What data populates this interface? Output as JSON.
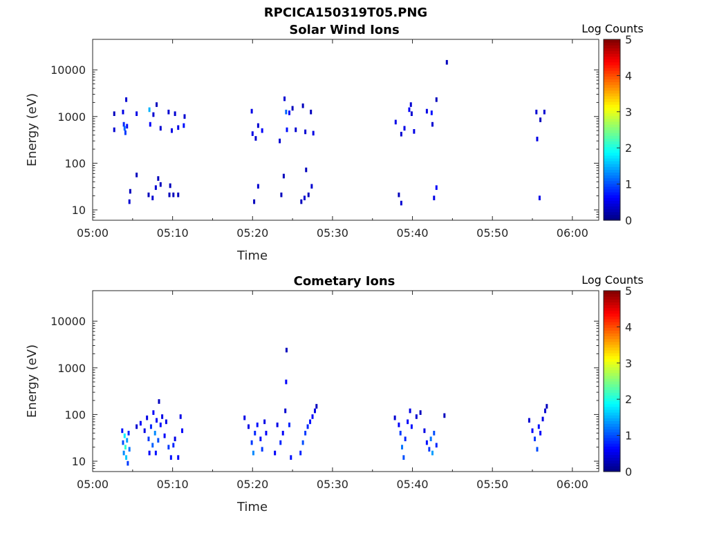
{
  "figure_title": "RPCICA150319T05.PNG",
  "colorbar": {
    "label": "Log Counts",
    "ticks": [
      "0",
      "1",
      "2",
      "3",
      "4",
      "5"
    ],
    "range": [
      0,
      5
    ],
    "colormap": "jet"
  },
  "chart_data": [
    {
      "type": "heatmap",
      "title": "Solar Wind Ions",
      "xlabel": "Time",
      "ylabel": "Energy (eV)",
      "xticks": [
        "05:00",
        "05:10",
        "05:20",
        "05:30",
        "05:40",
        "05:50",
        "06:00"
      ],
      "xlim_minutes": [
        0,
        63.3
      ],
      "yticks": [
        "10",
        "100",
        "1000",
        "10000"
      ],
      "yscale": "log",
      "ylim": [
        6,
        45000
      ],
      "points": [
        [
          2.7,
          1150,
          0.3
        ],
        [
          2.7,
          520,
          0.4
        ],
        [
          3.8,
          1250,
          0.5
        ],
        [
          3.9,
          680,
          0.8
        ],
        [
          4.0,
          560,
          1.1
        ],
        [
          4.1,
          450,
          0.9
        ],
        [
          4.2,
          2300,
          0.4
        ],
        [
          4.3,
          620,
          0.7
        ],
        [
          5.5,
          1150,
          0.5
        ],
        [
          7.1,
          1400,
          1.5
        ],
        [
          7.2,
          680,
          0.6
        ],
        [
          7.6,
          1100,
          0.4
        ],
        [
          8.0,
          1800,
          0.3
        ],
        [
          8.5,
          560,
          0.4
        ],
        [
          9.5,
          1250,
          0.4
        ],
        [
          9.9,
          500,
          0.5
        ],
        [
          10.3,
          1150,
          0.4
        ],
        [
          10.7,
          580,
          0.5
        ],
        [
          11.4,
          640,
          0.7
        ],
        [
          11.5,
          1000,
          0.4
        ],
        [
          19.9,
          1300,
          0.5
        ],
        [
          20.0,
          430,
          0.5
        ],
        [
          20.4,
          340,
          0.4
        ],
        [
          20.7,
          640,
          0.4
        ],
        [
          21.2,
          500,
          0.6
        ],
        [
          23.4,
          300,
          0.4
        ],
        [
          24.0,
          2400,
          0.4
        ],
        [
          24.2,
          1250,
          1.1
        ],
        [
          24.3,
          520,
          0.7
        ],
        [
          24.6,
          1200,
          0.6
        ],
        [
          25.0,
          1500,
          0.3
        ],
        [
          25.4,
          520,
          0.4
        ],
        [
          26.3,
          1700,
          0.3
        ],
        [
          26.6,
          470,
          0.4
        ],
        [
          27.3,
          1250,
          0.3
        ],
        [
          27.6,
          440,
          0.5
        ],
        [
          37.9,
          760,
          0.5
        ],
        [
          38.6,
          420,
          0.4
        ],
        [
          39.0,
          560,
          0.5
        ],
        [
          39.6,
          1400,
          0.6
        ],
        [
          39.8,
          1800,
          0.4
        ],
        [
          39.9,
          1150,
          0.4
        ],
        [
          40.2,
          480,
          0.5
        ],
        [
          41.8,
          1300,
          0.5
        ],
        [
          42.4,
          1200,
          0.7
        ],
        [
          42.5,
          680,
          0.4
        ],
        [
          43.0,
          2300,
          0.3
        ],
        [
          44.3,
          14500,
          0.3
        ],
        [
          55.5,
          1250,
          0.4
        ],
        [
          55.6,
          330,
          0.5
        ],
        [
          56.0,
          850,
          0.3
        ],
        [
          56.5,
          1250,
          0.4
        ],
        [
          4.6,
          15,
          0.4
        ],
        [
          4.7,
          25,
          0.3
        ],
        [
          5.5,
          56,
          0.3
        ],
        [
          7.0,
          21,
          0.3
        ],
        [
          7.5,
          18,
          0.4
        ],
        [
          7.9,
          30,
          0.4
        ],
        [
          8.2,
          47,
          0.3
        ],
        [
          8.5,
          35,
          0.3
        ],
        [
          9.6,
          21,
          0.3
        ],
        [
          9.7,
          33,
          0.3
        ],
        [
          10.1,
          21,
          0.3
        ],
        [
          10.7,
          21,
          0.3
        ],
        [
          20.2,
          15,
          0.3
        ],
        [
          20.7,
          32,
          0.4
        ],
        [
          23.6,
          21,
          0.3
        ],
        [
          23.9,
          53,
          0.3
        ],
        [
          26.1,
          15,
          0.3
        ],
        [
          26.5,
          18,
          0.4
        ],
        [
          26.7,
          72,
          0.3
        ],
        [
          27.0,
          21,
          0.3
        ],
        [
          27.4,
          32,
          0.4
        ],
        [
          38.3,
          21,
          0.3
        ],
        [
          38.6,
          14,
          0.4
        ],
        [
          42.7,
          18,
          0.5
        ],
        [
          43.0,
          30,
          0.6
        ],
        [
          55.9,
          18,
          0.5
        ]
      ]
    },
    {
      "type": "heatmap",
      "title": "Cometary Ions",
      "xlabel": "Time",
      "ylabel": "Energy (eV)",
      "xticks": [
        "05:00",
        "05:10",
        "05:20",
        "05:30",
        "05:40",
        "05:50",
        "06:00"
      ],
      "xlim_minutes": [
        0,
        63.3
      ],
      "yticks": [
        "10",
        "100",
        "1000",
        "10000"
      ],
      "yscale": "log",
      "ylim": [
        6,
        45000
      ],
      "points": [
        [
          3.7,
          45,
          0.7
        ],
        [
          3.8,
          25,
          1.0
        ],
        [
          3.9,
          15,
          1.3
        ],
        [
          4.0,
          35,
          1.8
        ],
        [
          4.1,
          20,
          2.1
        ],
        [
          4.2,
          12,
          1.6
        ],
        [
          4.3,
          28,
          1.4
        ],
        [
          4.4,
          9,
          0.9
        ],
        [
          4.5,
          40,
          0.8
        ],
        [
          4.6,
          18,
          1.2
        ],
        [
          5.5,
          55,
          0.4
        ],
        [
          6.0,
          65,
          0.6
        ],
        [
          6.5,
          45,
          0.5
        ],
        [
          6.8,
          85,
          0.5
        ],
        [
          7.0,
          30,
          0.9
        ],
        [
          7.1,
          15,
          0.6
        ],
        [
          7.3,
          55,
          0.8
        ],
        [
          7.5,
          22,
          1.1
        ],
        [
          7.6,
          110,
          0.6
        ],
        [
          7.8,
          40,
          1.3
        ],
        [
          7.9,
          15,
          0.7
        ],
        [
          8.0,
          75,
          0.6
        ],
        [
          8.2,
          28,
          1.0
        ],
        [
          8.3,
          190,
          0.3
        ],
        [
          8.5,
          60,
          0.7
        ],
        [
          8.7,
          90,
          0.5
        ],
        [
          9.0,
          35,
          0.6
        ],
        [
          9.2,
          70,
          0.5
        ],
        [
          9.5,
          20,
          0.9
        ],
        [
          9.8,
          12,
          0.7
        ],
        [
          10.1,
          22,
          0.8
        ],
        [
          10.3,
          30,
          0.5
        ],
        [
          10.7,
          12,
          0.6
        ],
        [
          11.0,
          90,
          0.5
        ],
        [
          11.2,
          45,
          0.6
        ],
        [
          19.0,
          85,
          0.5
        ],
        [
          19.5,
          55,
          0.5
        ],
        [
          19.9,
          25,
          0.9
        ],
        [
          20.1,
          15,
          1.3
        ],
        [
          20.3,
          40,
          0.8
        ],
        [
          20.6,
          60,
          0.7
        ],
        [
          21.0,
          30,
          0.7
        ],
        [
          21.2,
          18,
          0.9
        ],
        [
          21.5,
          70,
          0.5
        ],
        [
          21.7,
          40,
          0.6
        ],
        [
          22.8,
          15,
          0.6
        ],
        [
          23.1,
          60,
          0.5
        ],
        [
          23.5,
          25,
          0.8
        ],
        [
          23.8,
          40,
          0.6
        ],
        [
          24.1,
          120,
          0.4
        ],
        [
          24.2,
          500,
          0.6
        ],
        [
          24.25,
          2400,
          0.3
        ],
        [
          24.6,
          60,
          0.8
        ],
        [
          24.8,
          12,
          0.7
        ],
        [
          26.0,
          15,
          0.8
        ],
        [
          26.3,
          25,
          1.0
        ],
        [
          26.6,
          40,
          0.9
        ],
        [
          26.9,
          55,
          0.8
        ],
        [
          27.2,
          70,
          0.7
        ],
        [
          27.5,
          90,
          0.6
        ],
        [
          27.8,
          120,
          0.5
        ],
        [
          28.0,
          150,
          0.3
        ],
        [
          37.8,
          85,
          0.4
        ],
        [
          38.3,
          60,
          0.6
        ],
        [
          38.5,
          40,
          0.9
        ],
        [
          38.7,
          20,
          1.2
        ],
        [
          38.9,
          12,
          1.0
        ],
        [
          39.1,
          30,
          0.8
        ],
        [
          39.4,
          70,
          0.6
        ],
        [
          39.7,
          120,
          0.5
        ],
        [
          39.9,
          55,
          0.7
        ],
        [
          40.5,
          90,
          0.4
        ],
        [
          41.0,
          110,
          0.3
        ],
        [
          41.5,
          45,
          0.5
        ],
        [
          41.8,
          25,
          0.7
        ],
        [
          42.1,
          18,
          0.9
        ],
        [
          42.3,
          30,
          1.2
        ],
        [
          42.5,
          15,
          1.4
        ],
        [
          42.7,
          40,
          1.0
        ],
        [
          43.0,
          22,
          0.8
        ],
        [
          44.0,
          95,
          0.3
        ],
        [
          54.6,
          75,
          0.4
        ],
        [
          55.0,
          45,
          0.6
        ],
        [
          55.3,
          30,
          0.9
        ],
        [
          55.6,
          18,
          1.0
        ],
        [
          55.8,
          55,
          0.7
        ],
        [
          56.0,
          40,
          0.6
        ],
        [
          56.3,
          80,
          0.5
        ],
        [
          56.6,
          120,
          0.4
        ],
        [
          56.8,
          150,
          0.3
        ]
      ]
    }
  ]
}
